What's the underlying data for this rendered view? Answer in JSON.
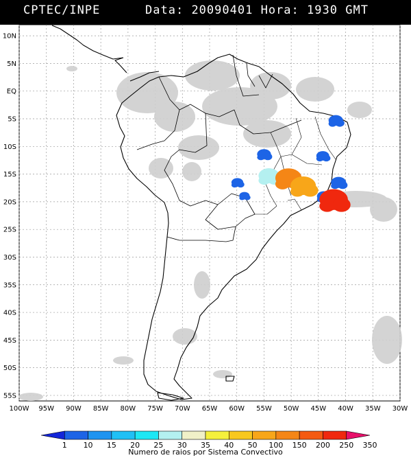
{
  "header": {
    "source": "CPTEC/INPE",
    "date_label": "Data:",
    "date_value": "20090401",
    "hour_label": "Hora:",
    "hour_value": "1930",
    "tz": "GMT"
  },
  "axes": {
    "lat_labels": [
      "10N",
      "5N",
      "EQ",
      "5S",
      "10S",
      "15S",
      "20S",
      "25S",
      "30S",
      "35S",
      "40S",
      "45S",
      "50S",
      "55S"
    ],
    "lon_labels": [
      "100W",
      "95W",
      "90W",
      "85W",
      "80W",
      "75W",
      "70W",
      "65W",
      "60W",
      "55W",
      "50W",
      "45W",
      "40W",
      "35W",
      "30W"
    ]
  },
  "legend": {
    "title": "Numero de raios por Sistema Convectivo",
    "labels": [
      "1",
      "10",
      "15",
      "20",
      "25",
      "30",
      "35",
      "40",
      "50",
      "100",
      "150",
      "200",
      "250",
      "350"
    ],
    "colors": [
      "#1426d8",
      "#1d64e6",
      "#1f94f0",
      "#20c0f5",
      "#1ee7f4",
      "#b4f0f0",
      "#f0f0c8",
      "#f5f03c",
      "#f8c81e",
      "#f8a619",
      "#f58616",
      "#f45a12",
      "#f0280e",
      "#e8106a"
    ]
  },
  "systems": [
    {
      "lon": -41.8,
      "lat": -5.3,
      "count": 5
    },
    {
      "lon": -44.2,
      "lat": -11.7,
      "count": 3
    },
    {
      "lon": -55.0,
      "lat": -11.4,
      "count": 4
    },
    {
      "lon": -59.9,
      "lat": -16.5,
      "count": 2
    },
    {
      "lon": -58.6,
      "lat": -18.9,
      "count": 1
    },
    {
      "lon": -54.1,
      "lat": -15.3,
      "count": 28
    },
    {
      "lon": -50.5,
      "lat": -15.7,
      "count": 120
    },
    {
      "lon": -47.8,
      "lat": -17.1,
      "count": 95
    },
    {
      "lon": -41.3,
      "lat": -16.5,
      "count": 6
    },
    {
      "lon": -44.0,
      "lat": -19.0,
      "count": 4
    },
    {
      "lon": -42.2,
      "lat": -19.6,
      "count": 210
    }
  ]
}
